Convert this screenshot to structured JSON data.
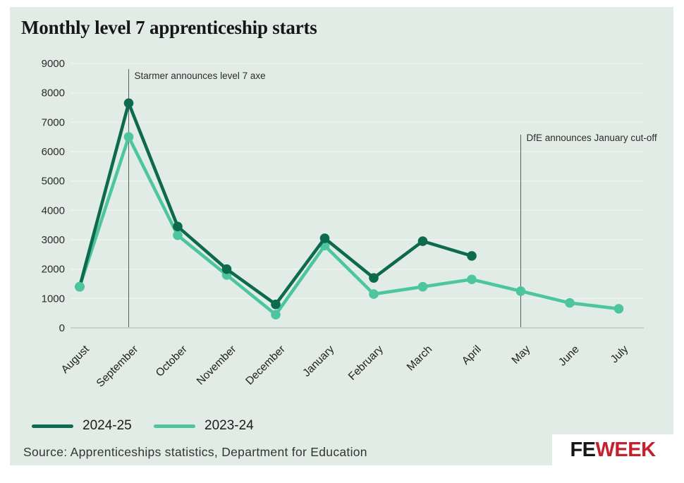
{
  "title": "Monthly level 7 apprenticeship starts",
  "source": "Source: Apprenticeships statistics, Department for Education",
  "logo": {
    "part1": "FE",
    "part2": "WEEK"
  },
  "colors": {
    "card_background": "#e0ece5",
    "gridline": "#edf4ef",
    "axis_line": "#bdcac3",
    "annotation_line": "#566059",
    "series_2024_25": "#0e6a4e",
    "series_2023_24": "#4dc6a0",
    "logo_fe": "#161616",
    "logo_week": "#c4202e"
  },
  "chart_data": {
    "type": "line",
    "title": "Monthly level 7 apprenticeship starts",
    "xlabel": "",
    "ylabel": "",
    "ylim": [
      0,
      9000
    ],
    "grid": true,
    "legend_position": "bottom-left",
    "y_ticks": [
      0,
      1000,
      2000,
      3000,
      4000,
      5000,
      6000,
      7000,
      8000,
      9000
    ],
    "categories": [
      "August",
      "September",
      "October",
      "November",
      "December",
      "January",
      "February",
      "March",
      "April",
      "May",
      "June",
      "July"
    ],
    "series": [
      {
        "name": "2024-25",
        "color": "#0e6a4e",
        "values": [
          1400,
          7650,
          3450,
          2000,
          800,
          3050,
          1700,
          2950,
          2450,
          null,
          null,
          null
        ]
      },
      {
        "name": "2023-24",
        "color": "#4dc6a0",
        "values": [
          1400,
          6500,
          3150,
          1800,
          450,
          2800,
          1150,
          1400,
          1650,
          1250,
          850,
          650
        ]
      }
    ],
    "annotations": [
      {
        "text": "Starmer announces level 7 axe",
        "month": "September",
        "month_index": 1
      },
      {
        "text": "DfE announces January cut-off",
        "month": "May",
        "month_index": 9
      }
    ]
  }
}
